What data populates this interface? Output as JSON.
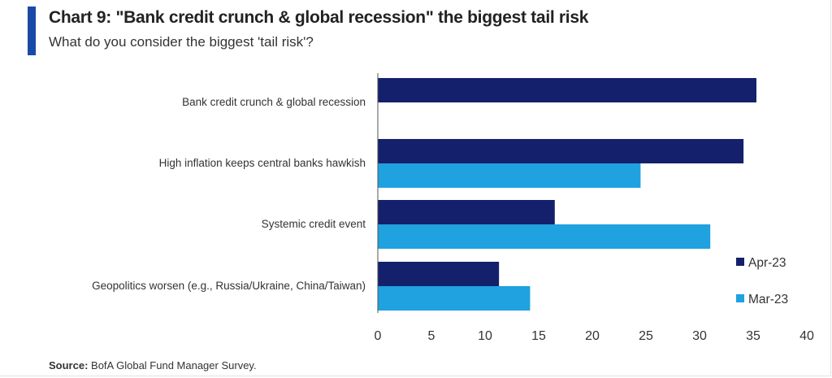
{
  "header": {
    "title": "Chart 9: \"Bank credit crunch & global recession\" the biggest tail risk",
    "subtitle": "What do you consider the biggest 'tail risk'?"
  },
  "source": {
    "label": "Source:",
    "text": "BofA Global Fund Manager Survey."
  },
  "chart_data": {
    "type": "bar",
    "orientation": "horizontal",
    "categories": [
      "Bank credit crunch & global recession",
      "High inflation keeps central banks hawkish",
      "Systemic credit event",
      "Geopolitics worsen (e.g., Russia/Ukraine, China/Taiwan)"
    ],
    "series": [
      {
        "name": "Apr-23",
        "color": "#14206b",
        "values": [
          35.3,
          34.1,
          16.5,
          11.3
        ]
      },
      {
        "name": "Mar-23",
        "color": "#1fa2df",
        "values": [
          null,
          24.5,
          31.0,
          14.2
        ]
      }
    ],
    "xlim": [
      0,
      40
    ],
    "xticks": [
      "0",
      "5",
      "10",
      "15",
      "20",
      "25",
      "30",
      "35",
      "40"
    ],
    "legend_position": "right",
    "grid": false
  }
}
